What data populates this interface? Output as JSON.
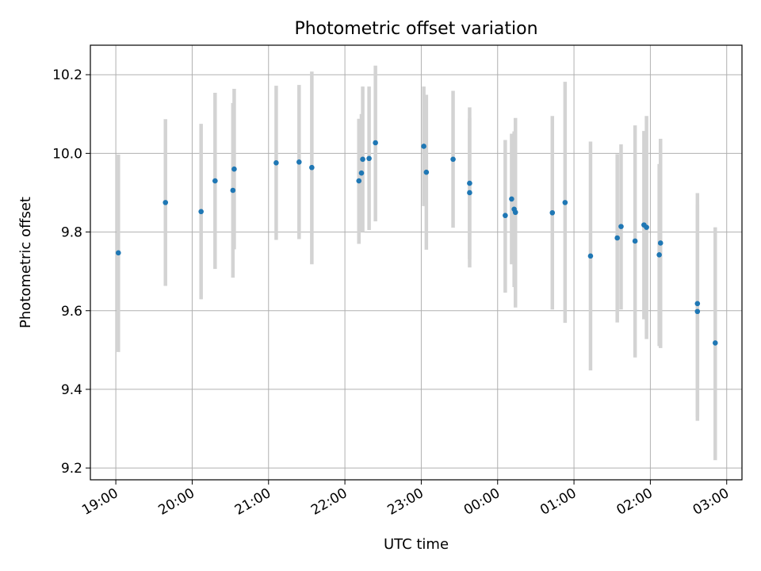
{
  "chart_data": {
    "type": "scatter",
    "title": "Photometric offset variation",
    "xlabel": "UTC time",
    "ylabel": "Photometric offset",
    "x_ticks": [
      "19:00",
      "20:00",
      "21:00",
      "22:00",
      "23:00",
      "00:00",
      "01:00",
      "02:00",
      "03:00"
    ],
    "y_ticks": [
      "9.2",
      "9.4",
      "9.6",
      "9.8",
      "10.0",
      "10.2"
    ],
    "xlim": [
      "18:40",
      "03:12"
    ],
    "ylim": [
      9.17,
      10.275
    ],
    "grid": true,
    "colors": {
      "points": "#1f77b4",
      "error_bars": "#d3d3d3",
      "grid": "#b0b0b0"
    },
    "points": [
      {
        "t": "19:02",
        "y": 9.747,
        "lo": 9.495,
        "hi": 9.997
      },
      {
        "t": "19:39",
        "y": 9.875,
        "lo": 9.663,
        "hi": 10.087
      },
      {
        "t": "20:07",
        "y": 9.852,
        "lo": 9.629,
        "hi": 10.075
      },
      {
        "t": "20:18",
        "y": 9.93,
        "lo": 9.706,
        "hi": 10.154
      },
      {
        "t": "20:32",
        "y": 9.906,
        "lo": 9.684,
        "hi": 10.128
      },
      {
        "t": "20:33",
        "y": 9.96,
        "lo": 9.756,
        "hi": 10.164
      },
      {
        "t": "21:06",
        "y": 9.976,
        "lo": 9.78,
        "hi": 10.172
      },
      {
        "t": "21:24",
        "y": 9.978,
        "lo": 9.782,
        "hi": 10.174
      },
      {
        "t": "21:34",
        "y": 9.964,
        "lo": 9.718,
        "hi": 10.208
      },
      {
        "t": "22:11",
        "y": 9.93,
        "lo": 9.77,
        "hi": 10.088
      },
      {
        "t": "22:13",
        "y": 9.95,
        "lo": 9.8,
        "hi": 10.1
      },
      {
        "t": "22:14",
        "y": 9.985,
        "lo": 9.8,
        "hi": 10.17
      },
      {
        "t": "22:19",
        "y": 9.987,
        "lo": 9.805,
        "hi": 10.17
      },
      {
        "t": "22:24",
        "y": 10.027,
        "lo": 9.827,
        "hi": 10.223
      },
      {
        "t": "23:02",
        "y": 10.018,
        "lo": 9.866,
        "hi": 10.17
      },
      {
        "t": "23:04",
        "y": 9.952,
        "lo": 9.755,
        "hi": 10.149
      },
      {
        "t": "23:25",
        "y": 9.985,
        "lo": 9.811,
        "hi": 10.159
      },
      {
        "t": "23:38",
        "y": 9.924,
        "lo": 9.731,
        "hi": 10.117
      },
      {
        "t": "23:38",
        "y": 9.9,
        "lo": 9.71,
        "hi": 10.09
      },
      {
        "t": "00:06",
        "y": 9.842,
        "lo": 9.646,
        "hi": 10.034
      },
      {
        "t": "00:11",
        "y": 9.884,
        "lo": 9.718,
        "hi": 10.05
      },
      {
        "t": "00:13",
        "y": 9.858,
        "lo": 9.66,
        "hi": 10.056
      },
      {
        "t": "00:14",
        "y": 9.85,
        "lo": 9.608,
        "hi": 10.09
      },
      {
        "t": "00:43",
        "y": 9.849,
        "lo": 9.603,
        "hi": 10.095
      },
      {
        "t": "00:53",
        "y": 9.875,
        "lo": 9.569,
        "hi": 10.182
      },
      {
        "t": "01:13",
        "y": 9.739,
        "lo": 9.448,
        "hi": 10.03
      },
      {
        "t": "01:34",
        "y": 9.785,
        "lo": 9.57,
        "hi": 9.998
      },
      {
        "t": "01:37",
        "y": 9.814,
        "lo": 9.603,
        "hi": 10.023
      },
      {
        "t": "01:48",
        "y": 9.777,
        "lo": 9.481,
        "hi": 10.071
      },
      {
        "t": "01:55",
        "y": 9.818,
        "lo": 9.578,
        "hi": 10.057
      },
      {
        "t": "01:57",
        "y": 9.812,
        "lo": 9.528,
        "hi": 10.095
      },
      {
        "t": "02:07",
        "y": 9.742,
        "lo": 9.51,
        "hi": 9.973
      },
      {
        "t": "02:08",
        "y": 9.772,
        "lo": 9.505,
        "hi": 10.037
      },
      {
        "t": "02:37",
        "y": 9.618,
        "lo": 9.32,
        "hi": 9.899
      },
      {
        "t": "02:37",
        "y": 9.598,
        "lo": 9.33,
        "hi": 9.87
      },
      {
        "t": "02:51",
        "y": 9.518,
        "lo": 9.22,
        "hi": 9.812
      }
    ]
  }
}
